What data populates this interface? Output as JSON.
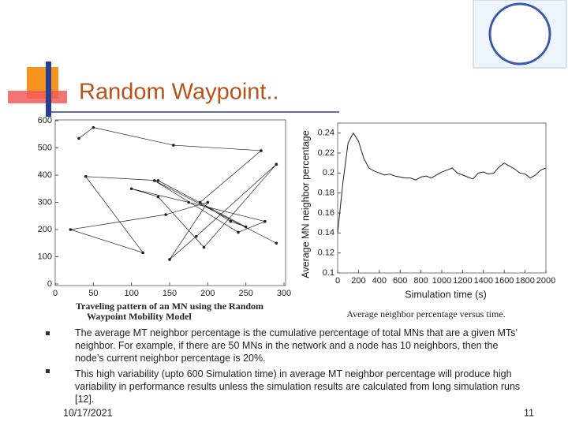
{
  "slide": {
    "title": "Random Waypoint..",
    "bullets": [
      "The average MT neighbor percentage is the cumulative percentage of total MNs that are a given MTs’ neighbor. For example, if there are 50 MNs in the network and a node has 10 neighbors, then the node’s current neighbor percentage is 20%.",
      "This high variability (upto 600 Simulation time) in average MT neighbor percentage will produce high variability in performance results unless the simulation results are calculated from long simulation runs [12]."
    ],
    "date": "10/17/2021",
    "page": "11"
  },
  "chart_data": [
    {
      "type": "line",
      "caption": "Traveling pattern of an MN using the Random Waypoint Mobility Model",
      "color": "#222222",
      "markers": true,
      "x": [
        31,
        50,
        155,
        270,
        190,
        230,
        250,
        135,
        40,
        115,
        20,
        145,
        200,
        150,
        185,
        290,
        195,
        135,
        100,
        175,
        275,
        240,
        130,
        290
      ],
      "y": [
        535,
        575,
        510,
        490,
        300,
        230,
        210,
        380,
        395,
        115,
        200,
        255,
        300,
        90,
        175,
        440,
        135,
        320,
        350,
        300,
        230,
        190,
        380,
        150
      ],
      "xlim": [
        0,
        300
      ],
      "ylim": [
        0,
        600
      ],
      "xticks": [
        0,
        50,
        100,
        150,
        200,
        250,
        300
      ],
      "yticks": [
        0,
        100,
        200,
        300,
        400,
        500,
        600
      ]
    },
    {
      "type": "line",
      "caption": "Average neighbor percentage versus time.",
      "xlabel": "Simulation time (s)",
      "ylabel": "Average MN neighbor percentage",
      "color": "#222222",
      "markers": false,
      "x": [
        0,
        50,
        100,
        150,
        200,
        250,
        300,
        350,
        400,
        450,
        500,
        550,
        600,
        650,
        700,
        750,
        800,
        850,
        900,
        950,
        1000,
        1050,
        1100,
        1150,
        1200,
        1250,
        1300,
        1350,
        1400,
        1450,
        1500,
        1550,
        1600,
        1650,
        1700,
        1750,
        1800,
        1850,
        1900,
        1950,
        2000
      ],
      "y": [
        0.14,
        0.19,
        0.23,
        0.24,
        0.232,
        0.215,
        0.205,
        0.202,
        0.2,
        0.198,
        0.199,
        0.197,
        0.196,
        0.195,
        0.195,
        0.193,
        0.196,
        0.197,
        0.195,
        0.198,
        0.201,
        0.203,
        0.205,
        0.2,
        0.198,
        0.196,
        0.194,
        0.2,
        0.201,
        0.199,
        0.2,
        0.206,
        0.21,
        0.207,
        0.204,
        0.2,
        0.199,
        0.195,
        0.198,
        0.203,
        0.205
      ],
      "xlim": [
        0,
        2000
      ],
      "ylim": [
        0.1,
        0.25
      ],
      "xticks": [
        0,
        200,
        400,
        600,
        800,
        1000,
        1200,
        1400,
        1600,
        1800,
        2000
      ],
      "yticks": [
        0.1,
        0.12,
        0.14,
        0.16,
        0.18,
        0.2,
        0.22,
        0.24
      ]
    }
  ]
}
